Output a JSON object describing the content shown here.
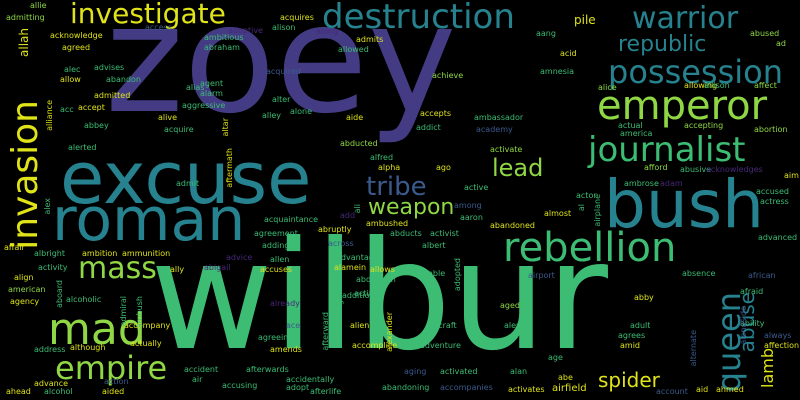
{
  "wordcloud": {
    "big": {
      "zoey": "zoey",
      "wilbur": "wilbur",
      "excuse": "excuse",
      "roman": "roman",
      "bush": "bush",
      "destruction": "destruction",
      "emperor": "emperor",
      "rebellion": "rebellion",
      "possession": "possession",
      "journalist": "journalist",
      "invasion": "invasion",
      "warrior": "warrior",
      "investigate": "investigate",
      "mad": "mad",
      "empire": "empire",
      "mass": "mass",
      "tribe": "tribe",
      "republic": "republic",
      "queen": "queen",
      "weapon": "weapon",
      "lead": "lead",
      "spider": "spider",
      "lamb": "lamb",
      "abuse": "abuse",
      "pile": "pile"
    },
    "small": {
      "allie": "allie",
      "admitting": "admitting",
      "acknowledge": "acknowledge",
      "agreed": "agreed",
      "access": "access",
      "adoptive": "adoptive",
      "alison": "alison",
      "abraham": "abraham",
      "ambitious": "ambitious",
      "acquires": "acquires",
      "along": "along",
      "admits": "admits",
      "allowed": "allowed",
      "aang": "aang",
      "abused": "abused",
      "ad": "ad",
      "acid": "acid",
      "allah": "allah",
      "alec": "alec",
      "allow": "allow",
      "advises": "advises",
      "abandon": "abandon",
      "admitted": "admitted",
      "alias": "alias",
      "agent": "agent",
      "alarm": "alarm",
      "aggressive": "aggressive",
      "acquired": "acquired",
      "achieve": "achieve",
      "amnesia": "amnesia",
      "alice": "alice",
      "allowing": "allowing",
      "allison": "allison",
      "affect": "affect",
      "acc": "acc",
      "accept": "accept",
      "alter": "alter",
      "alone": "alone",
      "aide": "aide",
      "accepts": "accepts",
      "ambassador": "ambassador",
      "actual": "actual",
      "accepting": "accepting",
      "abortion": "abortion",
      "abbey": "abbey",
      "alive": "alive",
      "acquire": "acquire",
      "altar": "altar",
      "alley": "alley",
      "addict": "addict",
      "academy": "academy",
      "america": "america",
      "alliance": "alliance",
      "alerted": "alerted",
      "abducted": "abducted",
      "alfred": "alfred",
      "activate": "activate",
      "afford": "afford",
      "abusive": "abusive",
      "acknowledges": "acknowledges",
      "alpha": "alpha",
      "ago": "ago",
      "admit": "admit",
      "aftermath": "aftermath",
      "active": "active",
      "actor": "actor",
      "ambrose": "ambrose",
      "adam": "adam",
      "aim": "aim",
      "accused": "accused",
      "actress": "actress",
      "alex": "alex",
      "add": "add",
      "among": "among",
      "ali": "ali",
      "al": "al",
      "airplane": "airplane",
      "aaron": "aaron",
      "almost": "almost",
      "acquaintance": "acquaintance",
      "abruptly": "abruptly",
      "ambushed": "ambushed",
      "abducts": "abducts",
      "activist": "activist",
      "abandoned": "abandoned",
      "agreement": "agreement",
      "adding": "adding",
      "across": "across",
      "albert": "albert",
      "advanced": "advanced",
      "affair": "affair",
      "albright": "albright",
      "ambition": "ambition",
      "ammunition": "ammunition",
      "advice": "advice",
      "allen": "allen",
      "advantage": "advantage",
      "activity": "activity",
      "ally": "ally",
      "abigail": "abigail",
      "accuses": "accuses",
      "alamein": "alamein",
      "allows": "allows",
      "able": "able",
      "airport": "airport",
      "absence": "absence",
      "african": "african",
      "align": "align",
      "alcoholic": "alcoholic",
      "abduction": "abduction",
      "american": "american",
      "aboard": "aboard",
      "additional": "additional",
      "adopted": "adopted",
      "acting": "acting",
      "abby": "abby",
      "afraid": "afraid",
      "agency": "agency",
      "admiral": "admiral",
      "already": "already",
      "aged": "aged",
      "adult": "adult",
      "ability": "ability",
      "accompany": "accompany",
      "ace": "ace",
      "alien": "alien",
      "alexander": "alexander",
      "aircraft": "aircraft",
      "alert": "alert",
      "agrees": "agrees",
      "alternate": "alternate",
      "alongside": "alongside",
      "always": "always",
      "actually": "actually",
      "agreeing": "agreeing",
      "according": "according",
      "afterward": "afterward",
      "accomplice": "accomplice",
      "address": "address",
      "although": "although",
      "ambush": "ambush",
      "amends": "amends",
      "adventure": "adventure",
      "amid": "amid",
      "affection": "affection",
      "age": "age",
      "action": "action",
      "accident": "accident",
      "afterwards": "afterwards",
      "aging": "aging",
      "activated": "activated",
      "alan": "alan",
      "abe": "abe",
      "advance": "advance",
      "air": "air",
      "accusing": "accusing",
      "accidentally": "accidentally",
      "ahead": "ahead",
      "alcohol": "alcohol",
      "aided": "aided",
      "adopt": "adopt",
      "afterlife": "afterlife",
      "abandoning": "abandoning",
      "accompanies": "accompanies",
      "activates": "activates",
      "airfield": "airfield",
      "account": "account",
      "aid": "aid",
      "ahmed": "ahmed"
    }
  },
  "colors": {
    "navy": "#433c84",
    "blue": "#3b5a8c",
    "teal": "#26828e",
    "green": "#3dbc74",
    "lime": "#8fd744",
    "yellow": "#dfe318",
    "purple": "#482878",
    "cyan": "#2db27d"
  }
}
